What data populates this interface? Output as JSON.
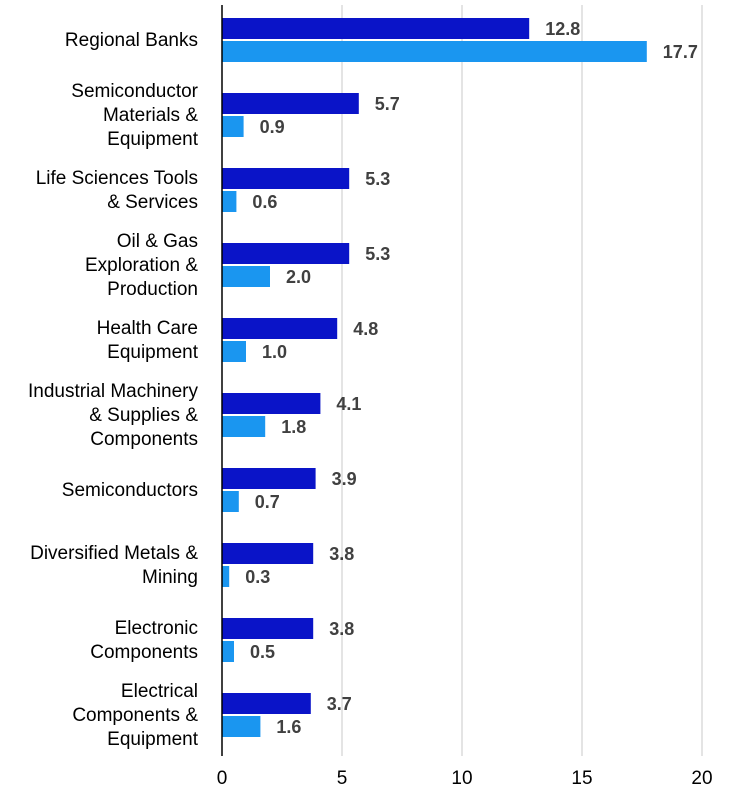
{
  "chart_data": {
    "type": "bar",
    "orientation": "horizontal",
    "categories": [
      [
        "Regional Banks"
      ],
      [
        "Semiconductor",
        "Materials &",
        "Equipment"
      ],
      [
        "Life Sciences Tools",
        "& Services"
      ],
      [
        "Oil & Gas",
        "Exploration &",
        "Production"
      ],
      [
        "Health Care",
        "Equipment"
      ],
      [
        "Industrial Machinery",
        "& Supplies &",
        "Components"
      ],
      [
        "Semiconductors"
      ],
      [
        "Diversified Metals &",
        "Mining"
      ],
      [
        "Electronic",
        "Components"
      ],
      [
        "Electrical",
        "Components &",
        "Equipment"
      ]
    ],
    "series": [
      {
        "values": [
          12.8,
          5.7,
          5.3,
          5.3,
          4.8,
          4.1,
          3.9,
          3.8,
          3.8,
          3.7
        ]
      },
      {
        "values": [
          17.7,
          0.9,
          0.6,
          2.0,
          1.0,
          1.8,
          0.7,
          0.3,
          0.5,
          1.6
        ]
      }
    ],
    "value_labels": [
      [
        "12.8",
        "5.7",
        "5.3",
        "5.3",
        "4.8",
        "4.1",
        "3.9",
        "3.8",
        "3.8",
        "3.7"
      ],
      [
        "17.7",
        "0.9",
        "0.6",
        "2.0",
        "1.0",
        "1.8",
        "0.7",
        "0.3",
        "0.5",
        "1.6"
      ]
    ],
    "xlim": [
      0,
      20
    ],
    "xticks": [
      "0",
      "5",
      "10",
      "15",
      "20"
    ],
    "grid": "vertical",
    "colors": {
      "series1": "#0a14c8",
      "series2": "#1a96f0",
      "grid": "#c8c8c8",
      "axis": "#000000"
    }
  }
}
